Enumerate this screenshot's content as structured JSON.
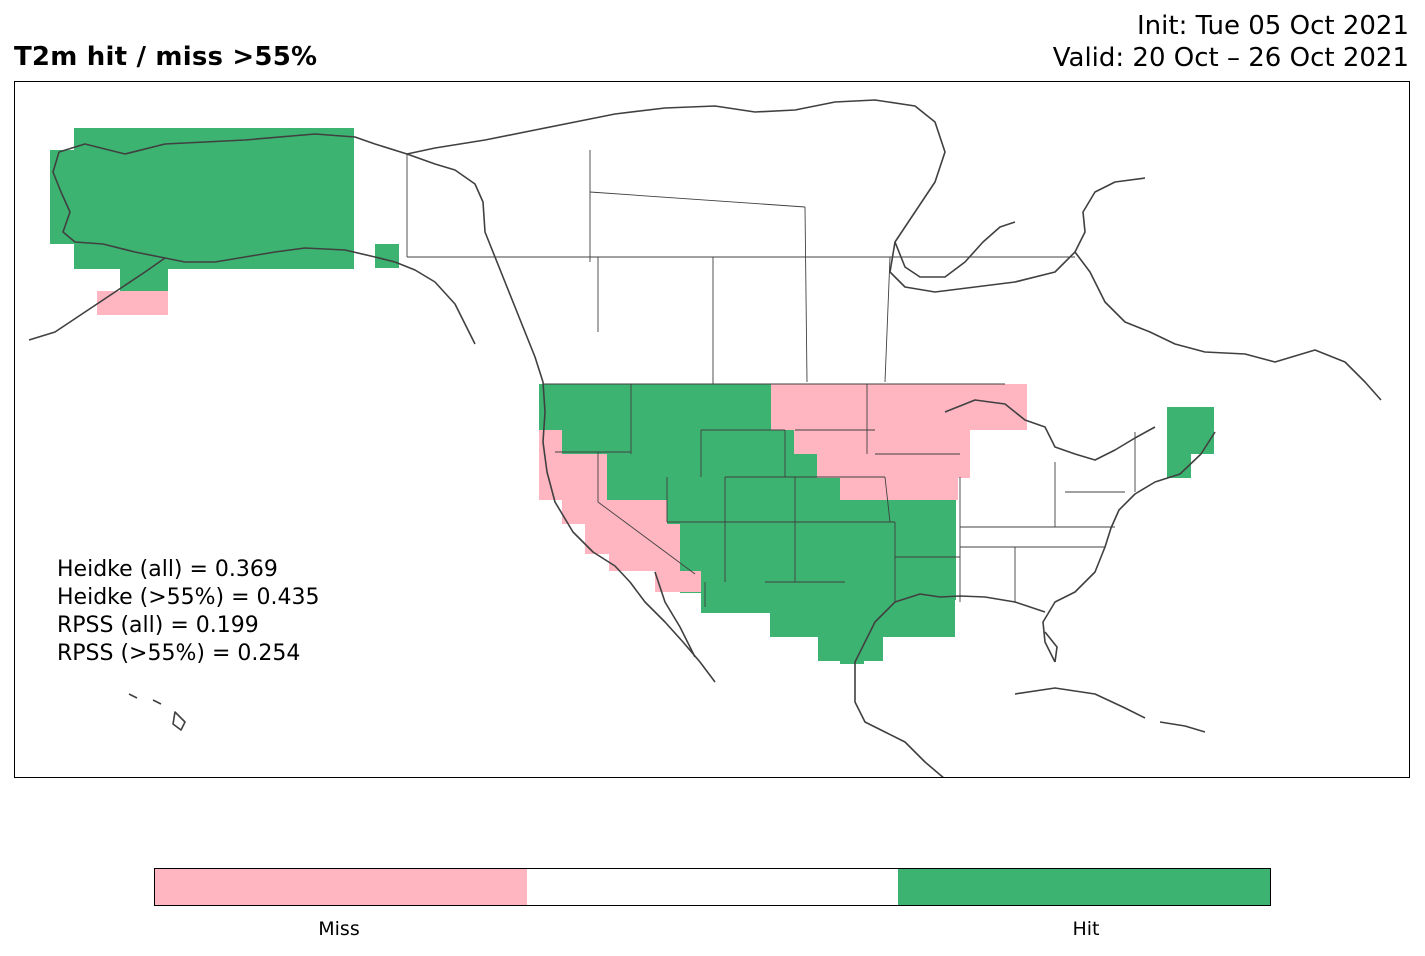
{
  "title": "T2m hit / miss  >55%",
  "init_text": "Init: Tue 05 Oct 2021",
  "valid_text": "Valid: 20 Oct – 26 Oct 2021",
  "stats": [
    "Heidke (all) = 0.369",
    "Heidke (>55%) = 0.435",
    "RPSS (all) = 0.199",
    "RPSS (>55%) = 0.254"
  ],
  "legend": {
    "categories": [
      {
        "label": "Miss",
        "color": "#ffb6c1"
      },
      {
        "label": "",
        "color": "#ffffff"
      },
      {
        "label": "Hit",
        "color": "#3cb371"
      }
    ]
  },
  "colors": {
    "miss": "#ffb6c1",
    "hit": "#3cb371",
    "coastline": "#404040",
    "border": "#404040"
  },
  "map": {
    "region": "North America",
    "variable": "T2m",
    "hit_regions": [
      "Alaska",
      "Pacific Northwest",
      "Northern Rockies",
      "Southern Rockies / Colorado",
      "Southern Plains / Texas",
      "Oklahoma / Arkansas",
      "Lower Mississippi / Louisiana",
      "New England"
    ],
    "miss_regions": [
      "Aleutian coast",
      "California coast",
      "Southern California / Arizona",
      "Northern Plains (North & South Dakota)",
      "Upper Midwest (Minnesota, Wisconsin, Iowa)",
      "Nebraska / Kansas border"
    ]
  }
}
